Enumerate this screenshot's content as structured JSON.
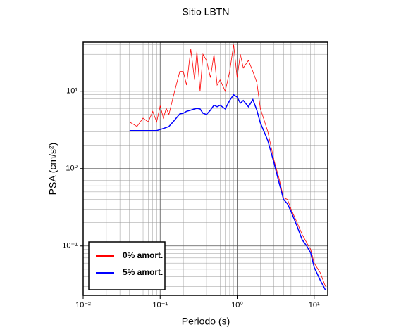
{
  "chart_data": {
    "type": "line",
    "title": "Sitio LBTN",
    "xlabel": "Periodo (s)",
    "ylabel": "PSA (cm/s²)",
    "xlog": true,
    "ylog": true,
    "grid": true,
    "legend": "lower left",
    "xlim": [
      0.01,
      15
    ],
    "ylim": [
      0.023,
      43
    ],
    "xticks": [
      {
        "value": 0.01,
        "label": "10⁻²"
      },
      {
        "value": 0.1,
        "label": "10⁻¹"
      },
      {
        "value": 1,
        "label": "10⁰"
      },
      {
        "value": 10,
        "label": "10¹"
      }
    ],
    "yticks": [
      {
        "value": 0.1,
        "label": "10⁻¹"
      },
      {
        "value": 1,
        "label": "10⁰"
      },
      {
        "value": 10,
        "label": "10¹"
      }
    ],
    "xminor": [
      0.02,
      0.03,
      0.04,
      0.05,
      0.06,
      0.07,
      0.08,
      0.09,
      0.2,
      0.3,
      0.4,
      0.5,
      0.6,
      0.7,
      0.8,
      0.9,
      2,
      3,
      4,
      5,
      6,
      7,
      8,
      9
    ],
    "yminor": [
      0.03,
      0.04,
      0.05,
      0.06,
      0.07,
      0.08,
      0.09,
      0.2,
      0.3,
      0.4,
      0.5,
      0.6,
      0.7,
      0.8,
      0.9,
      2,
      3,
      4,
      5,
      6,
      7,
      8,
      9,
      20,
      30,
      40
    ],
    "x": [
      0.04,
      0.05,
      0.06,
      0.07,
      0.08,
      0.09,
      0.1,
      0.11,
      0.12,
      0.13,
      0.15,
      0.18,
      0.2,
      0.22,
      0.25,
      0.28,
      0.3,
      0.33,
      0.36,
      0.4,
      0.45,
      0.5,
      0.55,
      0.6,
      0.7,
      0.8,
      0.9,
      1.0,
      1.1,
      1.2,
      1.4,
      1.6,
      1.8,
      2.0,
      2.5,
      3.0,
      3.5,
      4.0,
      4.5,
      5.0,
      6.0,
      7.0,
      8.0,
      9.0,
      10,
      12,
      14
    ],
    "series": [
      {
        "name": "0% amort.",
        "color": "#ff0000",
        "width": 0.8,
        "values": [
          4.0,
          3.5,
          4.5,
          4.0,
          5.5,
          4.0,
          6.5,
          4.5,
          6.0,
          5.0,
          9,
          18,
          18,
          12,
          35,
          14,
          33,
          10,
          30,
          25,
          15,
          30,
          12,
          14,
          10,
          18,
          40,
          15,
          30,
          20,
          25,
          18,
          13,
          6.0,
          3.0,
          1.3,
          0.75,
          0.42,
          0.4,
          0.3,
          0.2,
          0.14,
          0.11,
          0.09,
          0.06,
          0.045,
          0.03
        ]
      },
      {
        "name": "5% amort.",
        "color": "#0000ff",
        "width": 1.5,
        "values": [
          3.1,
          3.1,
          3.1,
          3.1,
          3.1,
          3.1,
          3.2,
          3.3,
          3.4,
          3.5,
          4.1,
          5.1,
          5.2,
          5.5,
          5.7,
          5.9,
          6.0,
          5.9,
          5.2,
          5.0,
          5.7,
          6.6,
          6.3,
          6.6,
          5.9,
          7.6,
          9.0,
          8.4,
          7.0,
          7.6,
          6.3,
          7.8,
          5.7,
          3.9,
          2.3,
          1.2,
          0.66,
          0.4,
          0.35,
          0.28,
          0.18,
          0.12,
          0.1,
          0.081,
          0.053,
          0.036,
          0.027
        ]
      }
    ]
  }
}
